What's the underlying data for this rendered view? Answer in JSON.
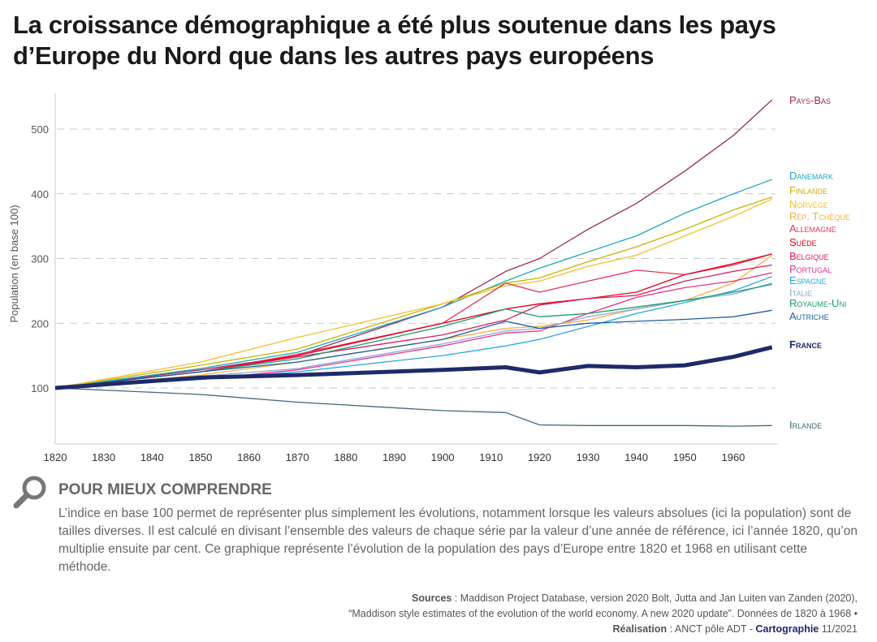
{
  "title": "La croissance démographique a été plus soutenue dans les pays d’Europe du Nord que dans les autres pays européens",
  "chart_data": {
    "type": "line",
    "title": "La croissance démographique a été plus soutenue dans les pays d’Europe du Nord que dans les autres pays européens",
    "xlabel": "",
    "ylabel": "Population (en base 100)",
    "xlim": [
      1820,
      1968
    ],
    "ylim": [
      20,
      560
    ],
    "x_ticks": [
      1820,
      1830,
      1840,
      1850,
      1860,
      1870,
      1880,
      1890,
      1900,
      1910,
      1920,
      1930,
      1940,
      1950,
      1960
    ],
    "y_ticks": [
      100,
      200,
      300,
      400,
      500
    ],
    "grid": "horizontal dashed",
    "legend": "right (labels at line ends)",
    "x": [
      1820,
      1850,
      1870,
      1900,
      1913,
      1920,
      1930,
      1940,
      1950,
      1960,
      1968
    ],
    "series": [
      {
        "name": "Pays-Bas",
        "color": "#9b2a5e",
        "values": [
          100,
          128,
          150,
          225,
          280,
          300,
          345,
          385,
          435,
          490,
          545
        ]
      },
      {
        "name": "Danemark",
        "color": "#1fa8b8",
        "values": [
          100,
          130,
          155,
          225,
          265,
          285,
          310,
          335,
          370,
          400,
          422
        ]
      },
      {
        "name": "Finlande",
        "color": "#c8b400",
        "values": [
          100,
          135,
          160,
          230,
          262,
          270,
          295,
          318,
          345,
          375,
          395
        ]
      },
      {
        "name": "Norvège",
        "color": "#f2c12e",
        "values": [
          100,
          140,
          178,
          230,
          258,
          265,
          288,
          305,
          335,
          365,
          392
        ]
      },
      {
        "name": "Rép. Tchèque",
        "color": "#f5b040",
        "values": [
          100,
          120,
          140,
          175,
          192,
          195,
          205,
          222,
          235,
          262,
          305
        ]
      },
      {
        "name": "Allemagne",
        "color": "#e8335a",
        "values": [
          100,
          125,
          152,
          200,
          262,
          248,
          265,
          282,
          275,
          290,
          307
        ]
      },
      {
        "name": "Suède",
        "color": "#e3001b",
        "values": [
          100,
          125,
          150,
          200,
          222,
          230,
          238,
          248,
          275,
          292,
          307
        ]
      },
      {
        "name": "Belgique",
        "color": "#d81b60",
        "values": [
          100,
          125,
          148,
          182,
          205,
          228,
          238,
          243,
          265,
          280,
          290
        ]
      },
      {
        "name": "Portugal",
        "color": "#e6308a",
        "values": [
          100,
          113,
          128,
          165,
          185,
          188,
          215,
          240,
          255,
          265,
          278
        ]
      },
      {
        "name": "Espagne",
        "color": "#29a8e0",
        "values": [
          100,
          113,
          125,
          150,
          165,
          175,
          195,
          215,
          232,
          250,
          272
        ]
      },
      {
        "name": "Italie",
        "color": "#8fa8d8",
        "values": [
          100,
          118,
          130,
          168,
          188,
          192,
          210,
          222,
          235,
          245,
          262
        ]
      },
      {
        "name": "Royaume-Uni",
        "color": "#1a9e6e",
        "values": [
          100,
          125,
          145,
          195,
          222,
          210,
          215,
          225,
          235,
          248,
          260
        ]
      },
      {
        "name": "Autriche",
        "color": "#1f5f9e",
        "values": [
          100,
          125,
          140,
          175,
          203,
          192,
          200,
          203,
          206,
          210,
          220
        ]
      },
      {
        "name": "France",
        "color": "#1f2a6b",
        "values": [
          100,
          116,
          120,
          128,
          132,
          124,
          134,
          132,
          135,
          148,
          163
        ]
      },
      {
        "name": "Irlande",
        "color": "#3d6b78",
        "values": [
          100,
          90,
          78,
          65,
          62,
          43,
          42,
          42,
          42,
          41,
          42
        ]
      }
    ]
  },
  "help": {
    "icon": "magnifier-icon",
    "title": "POUR MIEUX COMPRENDRE",
    "text": "L’indice en base 100 permet de représenter plus simplement les évolutions, notamment lorsque les valeurs absolues (ici la population) sont de tailles diverses. Il est calculé en divisant l’ensemble des valeurs de chaque série par la valeur d’une année de référence, ici l’année 1820, qu’on multiplie ensuite par cent. Ce graphique représente l’évolution de la population des pays d’Europe entre 1820 et 1968 en utilisant cette méthode."
  },
  "sources": {
    "label": "Sources",
    "line1": " : Maddison Project Database, version 2020 Bolt, Jutta and Jan Luiten van Zanden (2020),",
    "line2": "“Maddison style estimates of the evolution of the world economy. A new 2020 update”. Données de 1820 à 1968 •",
    "realisation_label": "Réalisation",
    "realisation": " : ANCT pôle ADT - ",
    "cartographie": "Cartographie",
    "date": " 11/2021"
  }
}
